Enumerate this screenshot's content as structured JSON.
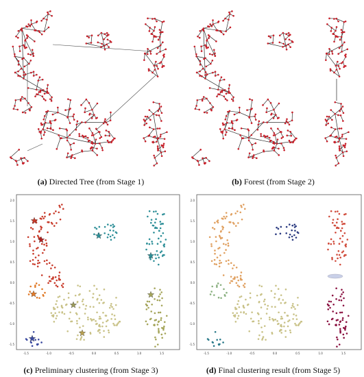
{
  "captions": {
    "a": {
      "letter": "(a)",
      "text": "Directed Tree (from Stage 1)"
    },
    "b": {
      "letter": "(b)",
      "text": "Forest (from Stage 2)"
    },
    "c": {
      "letter": "(c)",
      "text": "Preliminary clustering (from Stage 3)"
    },
    "d": {
      "letter": "(d)",
      "text": "Final clustering result (from Stage 5)"
    }
  },
  "panel_c_axes": {
    "y_ticks": [
      "2.0",
      "1.5",
      "1.0",
      "0.5",
      "0.0",
      "-0.5",
      "-1.0",
      "-1.5"
    ],
    "x_ticks": [
      "-1.5",
      "-1.0",
      "-0.5",
      "0.0",
      "0.5",
      "1.0",
      "1.5"
    ]
  },
  "panel_d_axes": {
    "y_ticks": [
      "2.0",
      "1.5",
      "1.0",
      "0.5",
      "0.0",
      "-0.5",
      "-1.0",
      "-1.5"
    ],
    "x_ticks": [
      "-1.5",
      "-1.0",
      "-0.5",
      "0.0",
      "0.5",
      "1.0",
      "1.5"
    ]
  },
  "colors": {
    "edge": "#2a2a2a",
    "node": "#c8202a",
    "crescent_c": "#c83a2a",
    "small_top_c": "#2e8f98",
    "right_top_c": "#2e8f98",
    "right_bottom_c": "#a5a55a",
    "left_small_c": "#e07a28",
    "blob_c": "#c9c288",
    "bottom_small_c": "#3b4aa0",
    "crescent_d": "#e0a060",
    "small_top_d": "#2a3a80",
    "right_top_d": "#d04a3a",
    "right_bottom_d": "#8a1040",
    "left_small_d": "#8ab080",
    "blob_d": "#c9c288",
    "bottom_small_d": "#2a7a8a"
  }
}
